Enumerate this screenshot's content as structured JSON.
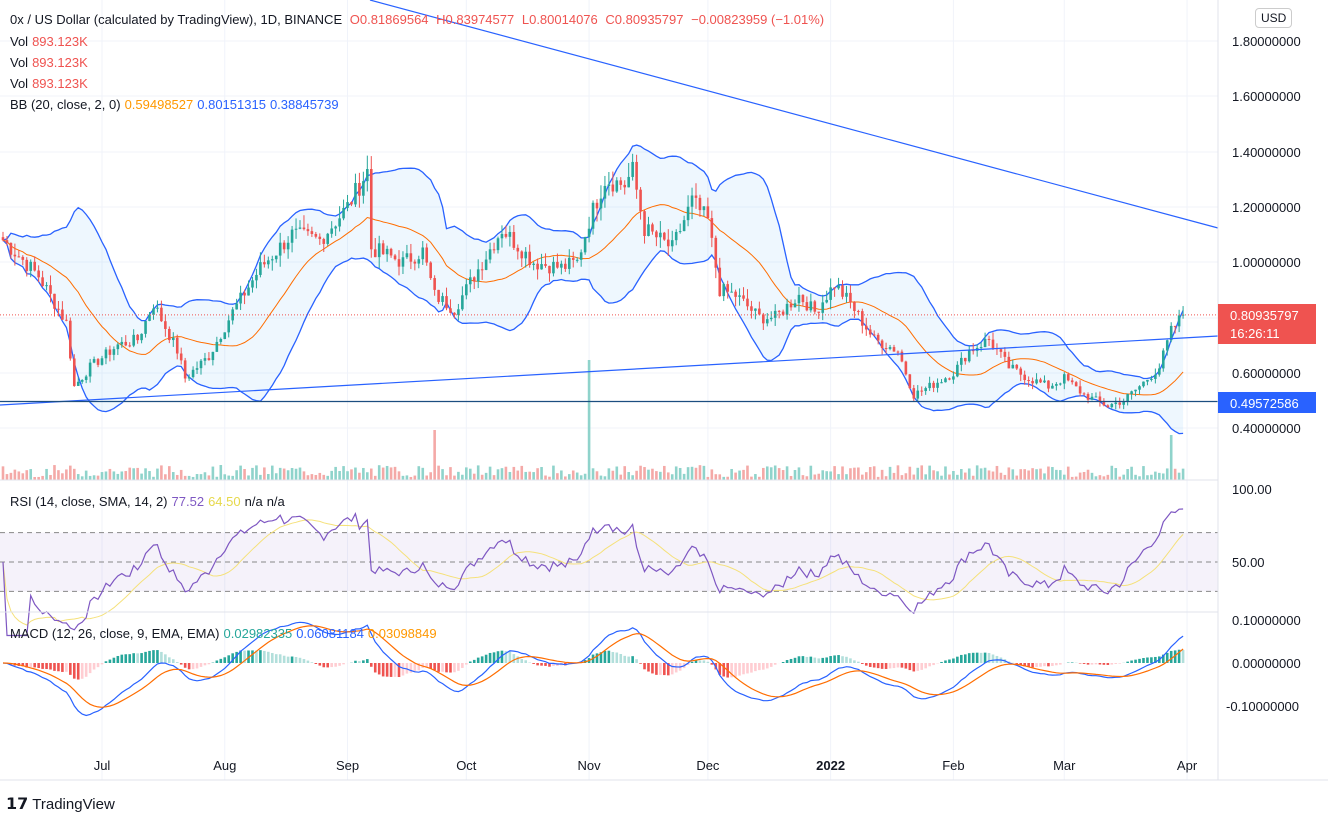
{
  "header": {
    "symbol": "0x / US Dollar (calculated by TradingView), 1D, BINANCE",
    "o": "O0.81869564",
    "h": "H0.83974577",
    "l": "L0.80014076",
    "c": "C0.80935797",
    "change": "−0.00823959 (−1.01%)"
  },
  "volume_rows": [
    {
      "label": "Vol",
      "value": "893.123K"
    },
    {
      "label": "Vol",
      "value": "893.123K"
    },
    {
      "label": "Vol",
      "value": "893.123K"
    }
  ],
  "bb": {
    "label": "BB (20, close, 2, 0)",
    "basis": "0.59498527",
    "upper": "0.80151315",
    "lower": "0.38845739"
  },
  "rsi": {
    "label": "RSI (14, close, SMA, 14, 2)",
    "value": "77.52",
    "ma": "64.50",
    "n1": "n/a",
    "n2": "n/a"
  },
  "macd": {
    "label": "MACD (12, 26, close, 9, EMA, EMA)",
    "hist": "0.02982335",
    "macd": "0.06081184",
    "signal": "0.03098849"
  },
  "currency": "USD",
  "last_price": {
    "value": "0.80935797",
    "countdown": "16:26:11"
  },
  "hline_label": "0.49572586",
  "brand": "TradingView",
  "colors": {
    "up": "#26a69a",
    "down": "#ef5350",
    "bb": "#2962ff",
    "basis": "#ff6d00",
    "rsi": "#7e57c2",
    "rsi_ma": "#f5e17a"
  },
  "chart_data": {
    "type": "candlestick",
    "price_axis": {
      "ticks": [
        "1.80000000",
        "1.60000000",
        "1.40000000",
        "1.20000000",
        "1.00000000",
        "0.80000000",
        "0.60000000",
        "0.40000000"
      ],
      "range": [
        0.4,
        1.8
      ]
    },
    "rsi_axis": {
      "ticks": [
        "100.00",
        "50.00"
      ],
      "bands": [
        30,
        70
      ]
    },
    "macd_axis": {
      "ticks": [
        "0.10000000",
        "0.00000000",
        "-0.10000000"
      ]
    },
    "x_ticks": [
      "Jul",
      "Aug",
      "Sep",
      "Oct",
      "Nov",
      "Dec",
      "2022",
      "Feb",
      "Mar",
      "Apr"
    ],
    "closes": [
      [
        "2021-06-06",
        1.08
      ],
      [
        "2021-06-15",
        0.95
      ],
      [
        "2021-06-22",
        0.78
      ],
      [
        "2021-06-24",
        0.55
      ],
      [
        "2021-06-28",
        0.62
      ],
      [
        "2021-07-05",
        0.7
      ],
      [
        "2021-07-10",
        0.72
      ],
      [
        "2021-07-14",
        0.85
      ],
      [
        "2021-07-20",
        0.68
      ],
      [
        "2021-07-22",
        0.58
      ],
      [
        "2021-07-28",
        0.66
      ],
      [
        "2021-08-03",
        0.82
      ],
      [
        "2021-08-10",
        0.98
      ],
      [
        "2021-08-18",
        1.1
      ],
      [
        "2021-08-25",
        1.08
      ],
      [
        "2021-09-01",
        1.2
      ],
      [
        "2021-09-06",
        1.33
      ],
      [
        "2021-09-07",
        1.05
      ],
      [
        "2021-09-15",
        1.0
      ],
      [
        "2021-09-20",
        1.04
      ],
      [
        "2021-09-23",
        0.88
      ],
      [
        "2021-09-28",
        0.83
      ],
      [
        "2021-10-03",
        0.95
      ],
      [
        "2021-10-10",
        1.12
      ],
      [
        "2021-10-18",
        1.0
      ],
      [
        "2021-10-25",
        0.98
      ],
      [
        "2021-10-29",
        1.0
      ],
      [
        "2021-11-01",
        1.15
      ],
      [
        "2021-11-05",
        1.3
      ],
      [
        "2021-11-10",
        1.28
      ],
      [
        "2021-11-12",
        1.33
      ],
      [
        "2021-11-15",
        1.12
      ],
      [
        "2021-11-22",
        1.05
      ],
      [
        "2021-11-27",
        1.22
      ],
      [
        "2021-12-01",
        1.15
      ],
      [
        "2021-12-04",
        0.9
      ],
      [
        "2021-12-08",
        0.88
      ],
      [
        "2021-12-14",
        0.8
      ],
      [
        "2021-12-18",
        0.8
      ],
      [
        "2021-12-24",
        0.88
      ],
      [
        "2021-12-28",
        0.82
      ],
      [
        "2022-01-02",
        0.92
      ],
      [
        "2022-01-06",
        0.85
      ],
      [
        "2022-01-12",
        0.72
      ],
      [
        "2022-01-18",
        0.68
      ],
      [
        "2022-01-22",
        0.52
      ],
      [
        "2022-01-26",
        0.55
      ],
      [
        "2022-02-01",
        0.6
      ],
      [
        "2022-02-05",
        0.68
      ],
      [
        "2022-02-10",
        0.72
      ],
      [
        "2022-02-15",
        0.62
      ],
      [
        "2022-02-20",
        0.58
      ],
      [
        "2022-02-25",
        0.55
      ],
      [
        "2022-03-01",
        0.58
      ],
      [
        "2022-03-06",
        0.52
      ],
      [
        "2022-03-12",
        0.48
      ],
      [
        "2022-03-16",
        0.5
      ],
      [
        "2022-03-20",
        0.55
      ],
      [
        "2022-03-25",
        0.62
      ],
      [
        "2022-03-28",
        0.75
      ],
      [
        "2022-03-31",
        0.81
      ]
    ],
    "horizontal_line": 0.49572586,
    "current_price": 0.80935797
  }
}
